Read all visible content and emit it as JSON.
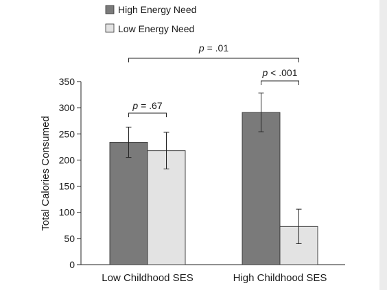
{
  "chart_data": {
    "type": "bar",
    "categories": [
      "Low Childhood SES",
      "High Childhood SES"
    ],
    "series": [
      {
        "name": "High Energy Need",
        "values": [
          234,
          291
        ],
        "error": [
          29,
          37
        ],
        "color": "#7a7a7a"
      },
      {
        "name": "Low Energy Need",
        "values": [
          218,
          73
        ],
        "error": [
          35,
          33
        ],
        "color": "#e3e3e3"
      }
    ],
    "xlabel": "",
    "ylabel": "Total Calories Consumed",
    "ylim": [
      0,
      350
    ],
    "yticks": [
      "0",
      "50",
      "100",
      "150",
      "200",
      "250",
      "300",
      "350"
    ],
    "grid": false,
    "legend_position": "top-left",
    "annotations": [
      {
        "p_label": "p",
        "text": " = .67",
        "between": [
          "Low Childhood SES: High Energy Need",
          "Low Childhood SES: Low Energy Need"
        ]
      },
      {
        "p_label": "p",
        "text": " < .001",
        "between": [
          "High Childhood SES: High Energy Need",
          "High Childhood SES: Low Energy Need"
        ]
      },
      {
        "p_label": "p",
        "text": " = .01",
        "between": [
          "Low Childhood SES",
          "High Childhood SES"
        ]
      }
    ]
  }
}
